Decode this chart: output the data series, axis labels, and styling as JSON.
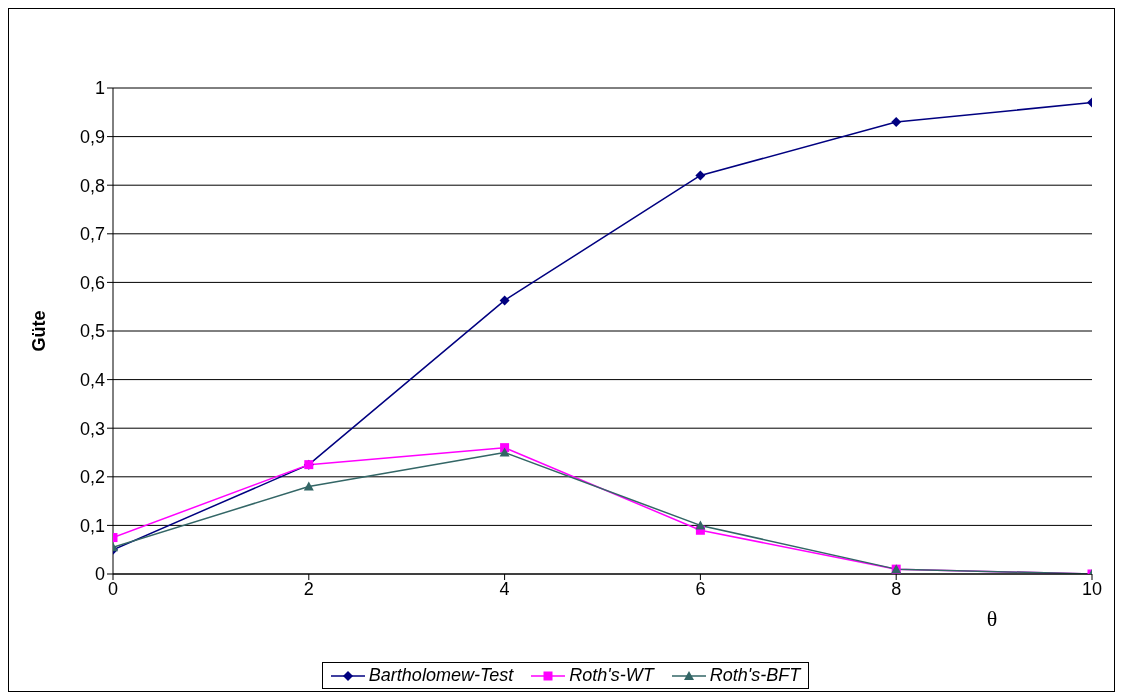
{
  "chart_data": {
    "type": "line",
    "ylabel": "Güte",
    "xlabel": "θ",
    "x": [
      0,
      2,
      4,
      6,
      8,
      10
    ],
    "xlim": [
      0,
      10
    ],
    "xticks": [
      0,
      2,
      4,
      6,
      8,
      10
    ],
    "ylim": [
      0,
      1
    ],
    "yticks": [
      0,
      {
        "value": 0.1,
        "label": "0,1"
      },
      {
        "value": 0.2,
        "label": "0,2"
      },
      {
        "value": 0.3,
        "label": "0,3"
      },
      {
        "value": 0.4,
        "label": "0,4"
      },
      {
        "value": 0.5,
        "label": "0,5"
      },
      {
        "value": 0.6,
        "label": "0,6"
      },
      {
        "value": 0.7,
        "label": "0,7"
      },
      {
        "value": 0.8,
        "label": "0,8"
      },
      {
        "value": 0.9,
        "label": "0,9"
      },
      1
    ],
    "grid": "y",
    "legend": "bottom",
    "series": [
      {
        "name": "Bartholomew-Test",
        "color": "#000080",
        "marker": "diamond",
        "values": [
          0.05,
          0.225,
          0.563,
          0.82,
          0.93,
          0.97
        ]
      },
      {
        "name": "Roth's-WT",
        "color": "#ff00ff",
        "marker": "square",
        "values": [
          0.075,
          0.225,
          0.26,
          0.09,
          0.01,
          0
        ]
      },
      {
        "name": "Roth's-BFT",
        "color": "#336666",
        "marker": "triangle",
        "values": [
          0.055,
          0.18,
          0.25,
          0.1,
          0.01,
          0
        ]
      }
    ]
  }
}
